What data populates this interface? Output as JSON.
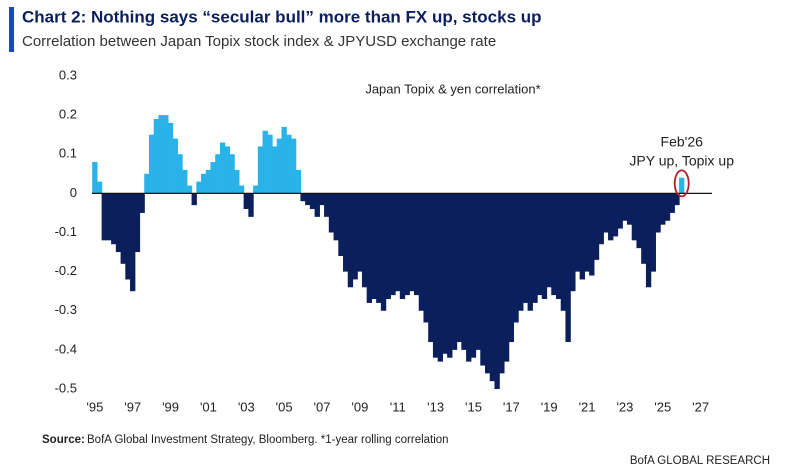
{
  "chart_data": {
    "type": "bar",
    "title": "Chart 2: Nothing says “secular bull” more than FX up, stocks up",
    "subtitle": "Correlation between Japan Topix stock index & JPYUSD exchange rate",
    "annotation": "Japan Topix & yen correlation*",
    "callout": [
      "Feb'26",
      "JPY up, Topix up"
    ],
    "source_label": "Source:",
    "source": "BofA Global Investment Strategy, Bloomberg. *1-year rolling correlation",
    "footer": "BofA GLOBAL RESEARCH",
    "positive_color": "#29b3e8",
    "negative_color": "#0b1f5c",
    "callout_color": "#b0202e",
    "x": [
      1995,
      1995.25,
      1995.5,
      1995.75,
      1996,
      1996.25,
      1996.5,
      1996.75,
      1997,
      1997.25,
      1997.5,
      1997.75,
      1998,
      1998.25,
      1998.5,
      1998.75,
      1999,
      1999.25,
      1999.5,
      1999.75,
      2000,
      2000.25,
      2000.5,
      2000.75,
      2001,
      2001.25,
      2001.5,
      2001.75,
      2002,
      2002.25,
      2002.5,
      2002.75,
      2003,
      2003.25,
      2003.5,
      2003.75,
      2004,
      2004.25,
      2004.5,
      2004.75,
      2005,
      2005.25,
      2005.5,
      2005.75,
      2006,
      2006.25,
      2006.5,
      2006.75,
      2007,
      2007.25,
      2007.5,
      2007.75,
      2008,
      2008.25,
      2008.5,
      2008.75,
      2009,
      2009.25,
      2009.5,
      2009.75,
      2010,
      2010.25,
      2010.5,
      2010.75,
      2011,
      2011.25,
      2011.5,
      2011.75,
      2012,
      2012.25,
      2012.5,
      2012.75,
      2013,
      2013.25,
      2013.5,
      2013.75,
      2014,
      2014.25,
      2014.5,
      2014.75,
      2015,
      2015.25,
      2015.5,
      2015.75,
      2016,
      2016.25,
      2016.5,
      2016.75,
      2017,
      2017.25,
      2017.5,
      2017.75,
      2018,
      2018.25,
      2018.5,
      2018.75,
      2019,
      2019.25,
      2019.5,
      2019.75,
      2020,
      2020.25,
      2020.5,
      2020.75,
      2021,
      2021.25,
      2021.5,
      2021.75,
      2022,
      2022.25,
      2022.5,
      2022.75,
      2023,
      2023.25,
      2023.5,
      2023.75,
      2024,
      2024.25,
      2024.5,
      2024.75,
      2025,
      2025.25,
      2025.5,
      2025.75,
      2026
    ],
    "values": [
      0.08,
      0.03,
      -0.12,
      -0.12,
      -0.13,
      -0.15,
      -0.18,
      -0.22,
      -0.25,
      -0.15,
      -0.05,
      0.05,
      0.15,
      0.19,
      0.2,
      0.2,
      0.18,
      0.14,
      0.1,
      0.06,
      0.02,
      -0.03,
      0.03,
      0.05,
      0.06,
      0.08,
      0.1,
      0.13,
      0.12,
      0.1,
      0.06,
      0.02,
      -0.04,
      -0.06,
      0.02,
      0.12,
      0.16,
      0.15,
      0.12,
      0.14,
      0.17,
      0.15,
      0.14,
      0.06,
      -0.02,
      -0.03,
      -0.04,
      -0.06,
      -0.03,
      -0.06,
      -0.1,
      -0.12,
      -0.16,
      -0.2,
      -0.24,
      -0.22,
      -0.2,
      -0.24,
      -0.28,
      -0.27,
      -0.28,
      -0.3,
      -0.27,
      -0.26,
      -0.25,
      -0.27,
      -0.26,
      -0.25,
      -0.26,
      -0.3,
      -0.33,
      -0.38,
      -0.42,
      -0.43,
      -0.41,
      -0.42,
      -0.4,
      -0.38,
      -0.4,
      -0.43,
      -0.42,
      -0.4,
      -0.44,
      -0.46,
      -0.48,
      -0.5,
      -0.46,
      -0.43,
      -0.38,
      -0.33,
      -0.3,
      -0.28,
      -0.3,
      -0.28,
      -0.26,
      -0.27,
      -0.24,
      -0.26,
      -0.27,
      -0.3,
      -0.38,
      -0.25,
      -0.2,
      -0.22,
      -0.2,
      -0.21,
      -0.17,
      -0.13,
      -0.1,
      -0.12,
      -0.11,
      -0.09,
      -0.07,
      -0.08,
      -0.12,
      -0.14,
      -0.18,
      -0.24,
      -0.2,
      -0.1,
      -0.08,
      -0.07,
      -0.05,
      -0.03,
      0.04
    ],
    "xlim": [
      1994.85,
      2027.6
    ],
    "xticks": [
      {
        "value": 1995,
        "label": "'95"
      },
      {
        "value": 1997,
        "label": "'97"
      },
      {
        "value": 1999,
        "label": "'99"
      },
      {
        "value": 2001,
        "label": "'01"
      },
      {
        "value": 2003,
        "label": "'03"
      },
      {
        "value": 2005,
        "label": "'05"
      },
      {
        "value": 2007,
        "label": "'07"
      },
      {
        "value": 2009,
        "label": "'09"
      },
      {
        "value": 2011,
        "label": "'11"
      },
      {
        "value": 2013,
        "label": "'13"
      },
      {
        "value": 2015,
        "label": "'15"
      },
      {
        "value": 2017,
        "label": "'17"
      },
      {
        "value": 2019,
        "label": "'19"
      },
      {
        "value": 2021,
        "label": "'21"
      },
      {
        "value": 2023,
        "label": "'23"
      },
      {
        "value": 2025,
        "label": "'25"
      },
      {
        "value": 2027,
        "label": "'27"
      }
    ],
    "ylim": [
      -0.5,
      0.3
    ],
    "yticks": [
      0.3,
      0.2,
      0.1,
      0,
      -0.1,
      -0.2,
      -0.3,
      -0.4,
      -0.5
    ]
  }
}
